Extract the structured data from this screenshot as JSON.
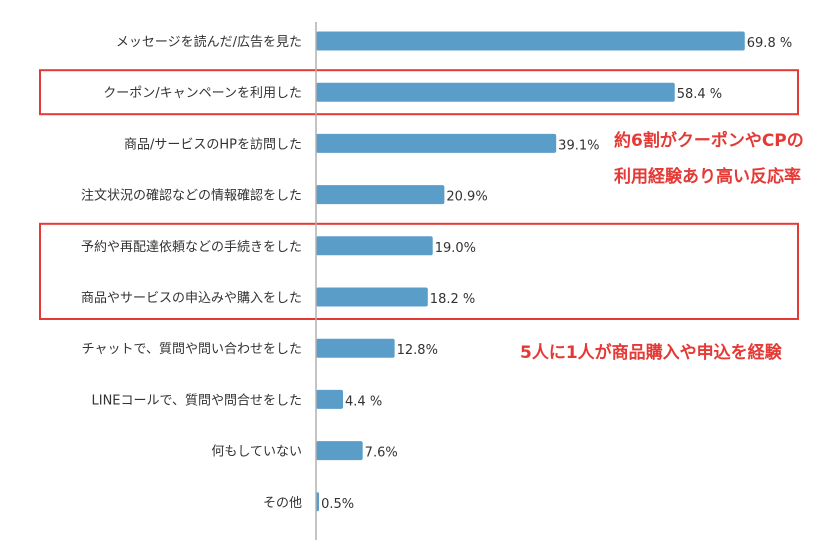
{
  "chart_data": {
    "type": "bar",
    "orientation": "horizontal",
    "categories": [
      "メッセージを読んだ/広告を見た",
      "クーポン/キャンペーンを利用した",
      "商品/サービスのHPを訪問した",
      "注文状況の確認などの情報確認をした",
      "予約や再配達依頼などの手続きをした",
      "商品やサービスの申込みや購入をした",
      "チャットで、質問や問い合わせをした",
      "LINEコールで、質問や問合せをした",
      "何もしていない",
      "その他"
    ],
    "values": [
      69.8,
      58.4,
      39.1,
      20.9,
      19.0,
      18.2,
      12.8,
      4.4,
      7.6,
      0.5
    ],
    "value_labels": [
      "69.8 %",
      "58.4 %",
      "39.1%",
      "20.9%",
      "19.0%",
      "18.2 %",
      "12.8%",
      "4.4 %",
      "7.6%",
      "0.5%"
    ],
    "xlim": [
      0,
      70
    ],
    "bar_color": "#5b9dc9",
    "highlight_color": "#e53935",
    "highlight_groups": [
      {
        "rows": [
          1,
          1
        ]
      },
      {
        "rows": [
          4,
          5
        ]
      }
    ],
    "annotations": [
      {
        "lines": [
          "約6割がクーポンやCPの",
          "利用経験あり高い反応率"
        ]
      },
      {
        "lines": [
          "5人に1人が商品購入や申込を経験"
        ]
      }
    ]
  }
}
